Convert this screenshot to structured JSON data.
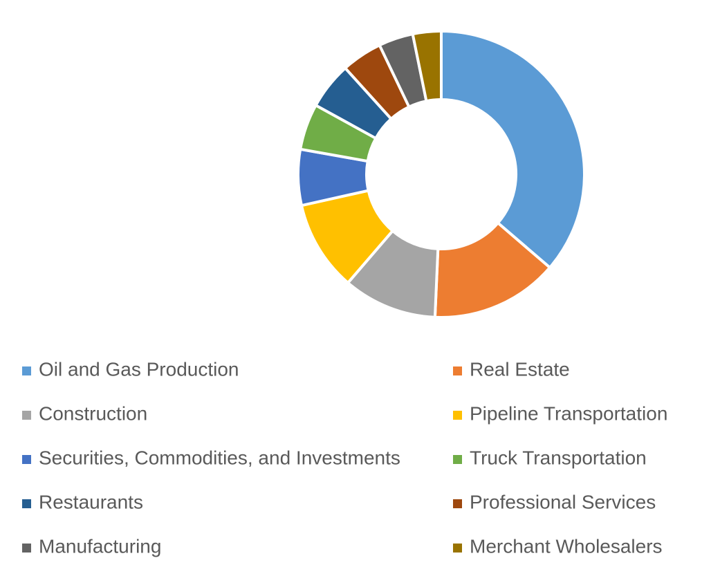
{
  "chart_data": {
    "type": "donut",
    "categories": [
      "Oil and Gas Production",
      "Real Estate",
      "Construction",
      "Pipeline Transportation",
      "Securities, Commodities, and Investments",
      "Truck Transportation",
      "Restaurants",
      "Professional Services",
      "Manufacturing",
      "Merchant Wholesalers"
    ],
    "values": [
      36.3,
      14.4,
      10.6,
      10.2,
      6.3,
      5.2,
      5.3,
      4.6,
      3.9,
      3.2
    ],
    "colors": [
      "#5b9bd5",
      "#ed7d31",
      "#a5a5a5",
      "#ffc000",
      "#4472c4",
      "#70ad47",
      "#255e91",
      "#9e480e",
      "#636363",
      "#997300"
    ]
  }
}
